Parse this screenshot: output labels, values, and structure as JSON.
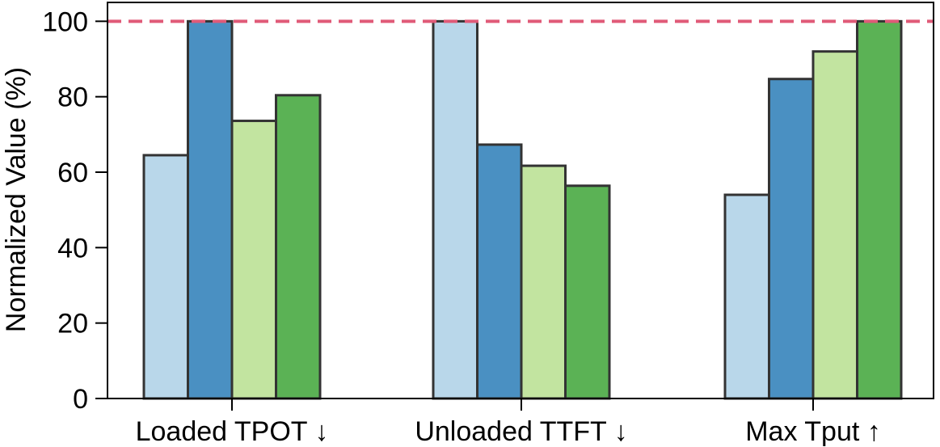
{
  "chart_data": {
    "type": "bar",
    "ylabel": "Normalized Value (%)",
    "xlabel": "",
    "ylim": [
      0,
      105
    ],
    "yticks": [
      0,
      20,
      40,
      60,
      80,
      100
    ],
    "categories": [
      "Loaded TPOT ↓",
      "Unloaded TTFT ↓",
      "Max Tput ↑"
    ],
    "series": [
      {
        "color": "#b9d7ea",
        "values": [
          64.5,
          100,
          54
        ]
      },
      {
        "color": "#4a90c2",
        "values": [
          100,
          67.3,
          84.7
        ]
      },
      {
        "color": "#c2e4a0",
        "values": [
          73.6,
          61.7,
          92
        ]
      },
      {
        "color": "#5bb255",
        "values": [
          80.4,
          56.4,
          100
        ]
      }
    ],
    "reference_line": {
      "value": 100,
      "color": "#e05a78",
      "style": "dashed"
    },
    "grid": false,
    "legend": "none"
  }
}
